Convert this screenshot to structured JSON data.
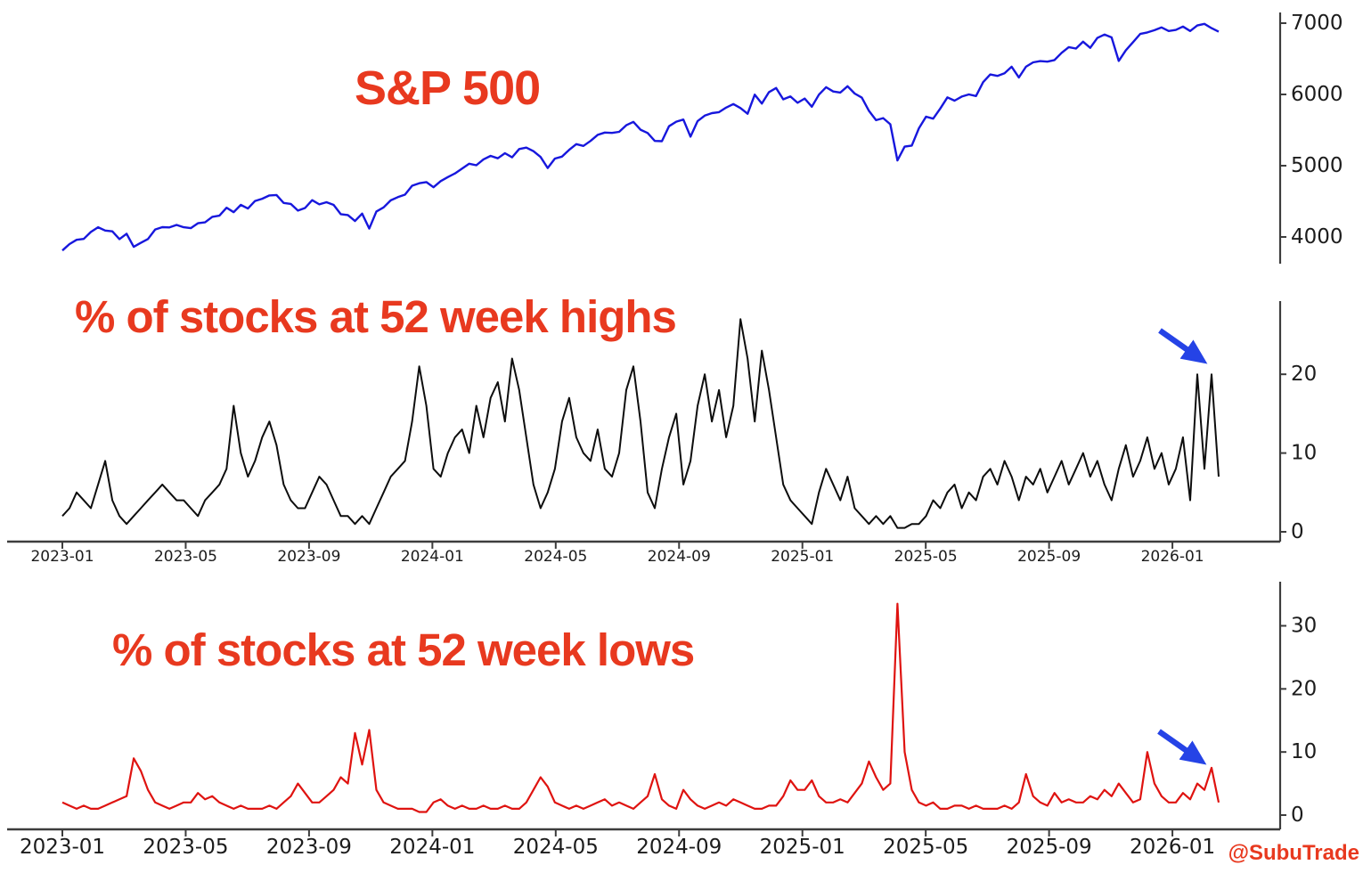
{
  "page": {
    "background": "#ffffff",
    "watermark": "@SubuTrade",
    "accent_red": "#e8391f",
    "arrow_color": "#2543e6",
    "axis_color": "#3d3d3d",
    "tick_text_color": "#1c1c1c"
  },
  "charts": {
    "x_tick_labels": [
      "2023-01",
      "2023-05",
      "2023-09",
      "2024-01",
      "2024-05",
      "2024-09",
      "2025-01",
      "2025-05",
      "2025-09",
      "2026-01"
    ]
  },
  "chart_data": [
    {
      "id": "sp500",
      "type": "line",
      "title": "S&P 500",
      "color": "#1717dd",
      "x_start": "2023-01",
      "x_end": "2026-02",
      "x_step": "weekly",
      "ylim": [
        3700,
        7100
      ],
      "yticks": [
        4000,
        5000,
        6000,
        7000
      ],
      "values": [
        3810,
        3900,
        3960,
        3972,
        4070,
        4136,
        4090,
        4079,
        3970,
        4045,
        3861,
        3917,
        3971,
        4105,
        4138,
        4134,
        4169,
        4136,
        4124,
        4192,
        4205,
        4282,
        4299,
        4410,
        4348,
        4450,
        4399,
        4505,
        4536,
        4582,
        4589,
        4478,
        4464,
        4370,
        4406,
        4516,
        4458,
        4487,
        4450,
        4320,
        4308,
        4224,
        4327,
        4117,
        4358,
        4415,
        4514,
        4559,
        4594,
        4719,
        4754,
        4770,
        4697,
        4784,
        4840,
        4891,
        4959,
        5027,
        5006,
        5089,
        5137,
        5104,
        5175,
        5117,
        5234,
        5254,
        5204,
        5123,
        4967,
        5100,
        5128,
        5223,
        5303,
        5278,
        5347,
        5432,
        5465,
        5460,
        5475,
        5567,
        5615,
        5505,
        5459,
        5347,
        5344,
        5554,
        5617,
        5648,
        5408,
        5626,
        5703,
        5738,
        5751,
        5815,
        5865,
        5809,
        5729,
        5996,
        5871,
        6032,
        6090,
        5931,
        5971,
        5882,
        5942,
        5827,
        5997,
        6101,
        6041,
        6026,
        6115,
        6013,
        5955,
        5770,
        5639,
        5668,
        5581,
        5074,
        5268,
        5283,
        5525,
        5687,
        5660,
        5803,
        5959,
        5912,
        5970,
        6000,
        5977,
        6173,
        6280,
        6260,
        6297,
        6389,
        6238,
        6389,
        6450,
        6467,
        6460,
        6482,
        6584,
        6664,
        6644,
        6740,
        6654,
        6792,
        6840,
        6800,
        6470,
        6620,
        6734,
        6849,
        6870,
        6901,
        6940,
        6890,
        6905,
        6952,
        6890,
        6968,
        6990,
        6930,
        6880
      ]
    },
    {
      "id": "pct_52wk_highs",
      "type": "line",
      "title": "% of stocks at 52 week highs",
      "color": "#0d0d0d",
      "x_start": "2023-01",
      "x_end": "2026-02",
      "x_step": "weekly",
      "ylim": [
        0,
        28.5
      ],
      "yticks": [
        0,
        10,
        20
      ],
      "annotation": "blue arrow pointing to recent spike near 20",
      "values": [
        2,
        3,
        5,
        4,
        3,
        6,
        9,
        4,
        2,
        1,
        2,
        3,
        4,
        5,
        6,
        5,
        4,
        4,
        3,
        2,
        4,
        5,
        6,
        8,
        16,
        10,
        7,
        9,
        12,
        14,
        11,
        6,
        4,
        3,
        3,
        5,
        7,
        6,
        4,
        2,
        2,
        1,
        2,
        1,
        3,
        5,
        7,
        8,
        9,
        14,
        21,
        16,
        8,
        7,
        10,
        12,
        13,
        10,
        16,
        12,
        17,
        19,
        14,
        22,
        18,
        12,
        6,
        3,
        5,
        8,
        14,
        17,
        12,
        10,
        9,
        13,
        8,
        7,
        10,
        18,
        21,
        14,
        5,
        3,
        8,
        12,
        15,
        6,
        9,
        16,
        20,
        14,
        18,
        12,
        16,
        27,
        22,
        14,
        23,
        18,
        12,
        6,
        4,
        3,
        2,
        1,
        5,
        8,
        6,
        4,
        7,
        3,
        2,
        1,
        2,
        1,
        2,
        0.5,
        0.5,
        1,
        1,
        2,
        4,
        3,
        5,
        6,
        3,
        5,
        4,
        7,
        8,
        6,
        9,
        7,
        4,
        7,
        6,
        8,
        5,
        7,
        9,
        6,
        8,
        10,
        7,
        9,
        6,
        4,
        8,
        11,
        7,
        9,
        12,
        8,
        10,
        6,
        8,
        12,
        4,
        20,
        8,
        20,
        7
      ]
    },
    {
      "id": "pct_52wk_lows",
      "type": "line",
      "title": "% of stocks at 52 week lows",
      "color": "#df1310",
      "x_start": "2023-01",
      "x_end": "2026-02",
      "x_step": "weekly",
      "ylim": [
        0,
        36
      ],
      "yticks": [
        0,
        10,
        20,
        30
      ],
      "annotation": "blue arrow pointing to recent uptick near 7",
      "values": [
        2,
        1.5,
        1,
        1.5,
        1,
        1,
        1.5,
        2,
        2.5,
        3,
        9,
        7,
        4,
        2,
        1.5,
        1,
        1.5,
        2,
        2,
        3.5,
        2.5,
        3,
        2,
        1.5,
        1,
        1.5,
        1,
        1,
        1,
        1.5,
        1,
        2,
        3,
        5,
        3.5,
        2,
        2,
        3,
        4,
        6,
        5,
        13,
        8,
        13.5,
        4,
        2,
        1.5,
        1,
        1,
        1,
        0.5,
        0.5,
        2,
        2.5,
        1.5,
        1,
        1.5,
        1,
        1,
        1.5,
        1,
        1,
        1.5,
        1,
        1,
        2,
        4,
        6,
        4.5,
        2,
        1.5,
        1,
        1.5,
        1,
        1.5,
        2,
        2.5,
        1.5,
        2,
        1.5,
        1,
        2,
        3,
        6.5,
        2.5,
        1.5,
        1,
        4,
        2.5,
        1.5,
        1,
        1.5,
        2,
        1.5,
        2.5,
        2,
        1.5,
        1,
        1,
        1.5,
        1.5,
        3,
        5.5,
        4,
        4,
        5.5,
        3,
        2,
        2,
        2.5,
        2,
        3.5,
        5,
        8.5,
        6,
        4,
        5,
        33.5,
        10,
        4,
        2,
        1.5,
        2,
        1,
        1,
        1.5,
        1.5,
        1,
        1.5,
        1,
        1,
        1,
        1.5,
        1,
        2,
        6.5,
        3,
        2,
        1.5,
        3.5,
        2,
        2.5,
        2,
        2,
        3,
        2.5,
        4,
        3,
        5,
        3.5,
        2,
        2.5,
        10,
        5,
        3,
        2,
        2,
        3.5,
        2.5,
        5,
        4,
        7.5,
        2
      ]
    }
  ]
}
